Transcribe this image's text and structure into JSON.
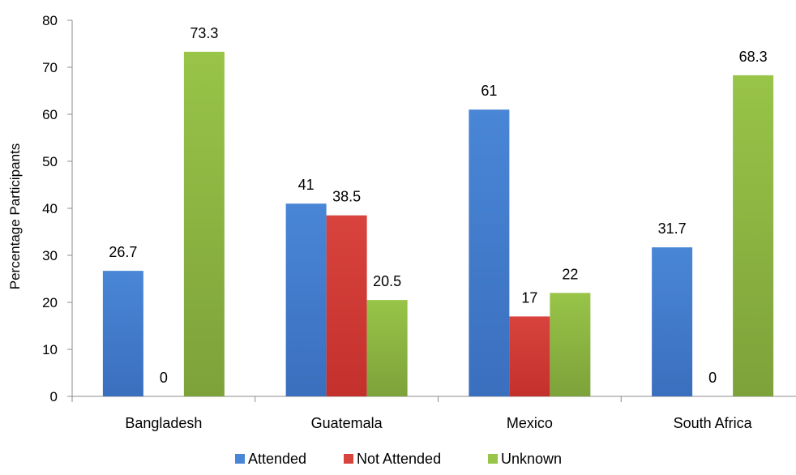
{
  "chart_data": {
    "type": "bar",
    "categories": [
      "Bangladesh",
      "Guatemala",
      "Mexico",
      "South Africa"
    ],
    "series": [
      {
        "name": "Attended",
        "values": [
          26.7,
          41,
          61,
          31.7
        ],
        "labels": [
          "26.7",
          "41",
          "61",
          "31.7"
        ],
        "color": "#3a6fbe",
        "color_light": "#4a86d6"
      },
      {
        "name": "Not Attended",
        "values": [
          0,
          38.5,
          17,
          0
        ],
        "labels": [
          "0",
          "38.5",
          "17",
          "0"
        ],
        "color": "#c4302c",
        "color_light": "#d8433d"
      },
      {
        "name": "Unknown",
        "values": [
          73.3,
          20.5,
          22,
          68.3
        ],
        "labels": [
          "73.3",
          "20.5",
          "22",
          "68.3"
        ],
        "color": "#7da23a",
        "color_light": "#98c448"
      }
    ],
    "ylabel": "Percentage Participants",
    "xlabel": "",
    "ylim": [
      0,
      80
    ],
    "yticks": [
      0,
      10,
      20,
      30,
      40,
      50,
      60,
      70,
      80
    ],
    "grid": false,
    "legend_position": "bottom"
  }
}
